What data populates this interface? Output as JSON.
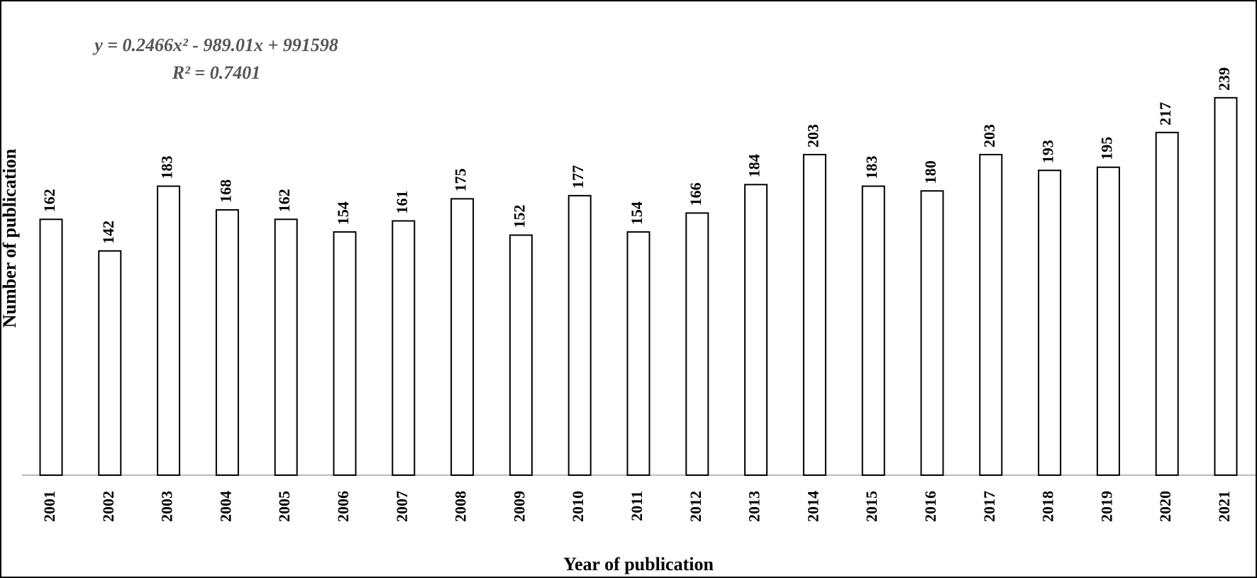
{
  "chart_data": {
    "type": "bar",
    "x_label": "Year of publication",
    "y_label": "Number of publication",
    "annotations": [
      "y = 0.2466x² - 989.01x + 991598",
      "R² = 0.7401"
    ],
    "categories": [
      "2001",
      "2002",
      "2003",
      "2004",
      "2005",
      "2006",
      "2007",
      "2008",
      "2009",
      "2010",
      "2011",
      "2012",
      "2013",
      "2014",
      "2015",
      "2016",
      "2017",
      "2018",
      "2019",
      "2020",
      "2021"
    ],
    "values": [
      162,
      142,
      183,
      168,
      162,
      154,
      161,
      175,
      152,
      177,
      154,
      166,
      184,
      203,
      183,
      180,
      203,
      193,
      195,
      217,
      239
    ],
    "color": "#ffffff",
    "ylim": [
      0,
      300
    ]
  }
}
